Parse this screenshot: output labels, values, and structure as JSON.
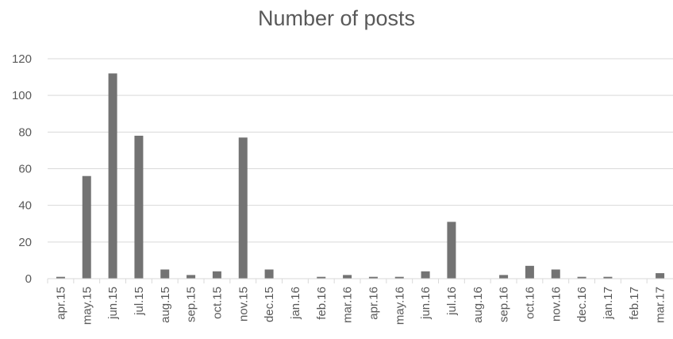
{
  "chart_data": {
    "type": "bar",
    "title": "Number of posts",
    "xlabel": "",
    "ylabel": "",
    "categories": [
      "apr.15",
      "may.15",
      "jun.15",
      "jul.15",
      "aug.15",
      "sep.15",
      "oct.15",
      "nov.15",
      "dec.15",
      "jan.16",
      "feb.16",
      "mar.16",
      "apr.16",
      "may.16",
      "jun.16",
      "jul.16",
      "aug.16",
      "sep.16",
      "oct.16",
      "nov.16",
      "dec.16",
      "jan.17",
      "feb.17",
      "mar.17"
    ],
    "values": [
      1,
      56,
      112,
      78,
      5,
      2,
      4,
      77,
      5,
      0,
      1,
      2,
      1,
      1,
      4,
      31,
      0,
      2,
      7,
      5,
      1,
      1,
      0,
      3
    ],
    "ylim": [
      0,
      120
    ],
    "yticks": [
      0,
      20,
      40,
      60,
      80,
      100,
      120
    ],
    "grid": true,
    "legend": "none",
    "bar_color": "#737373",
    "grid_color": "#d9d9d9"
  }
}
